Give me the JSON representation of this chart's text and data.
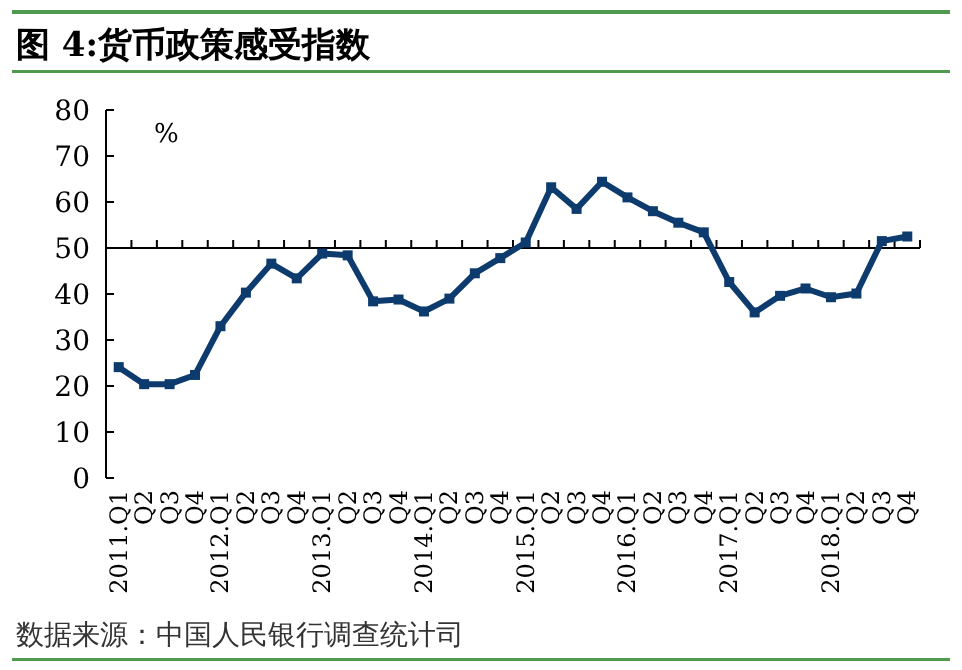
{
  "chart_data": {
    "type": "line",
    "title": "图 4:货币政策感受指数",
    "ylabel": "%",
    "annotations": [
      "数据来源：中国人民银行调查统计司"
    ],
    "categories": [
      "2011.Q1",
      "Q2",
      "Q3",
      "Q4",
      "2012.Q1",
      "Q2",
      "Q3",
      "Q4",
      "2013.Q1",
      "Q2",
      "Q3",
      "Q4",
      "2014.Q1",
      "Q2",
      "Q3",
      "Q4",
      "2015.Q1",
      "Q2",
      "Q3",
      "Q4",
      "2016.Q1",
      "Q2",
      "Q3",
      "Q4",
      "2017.Q1",
      "Q2",
      "Q3",
      "Q4",
      "2018.Q1",
      "Q2",
      "Q3",
      "Q4"
    ],
    "series": [
      {
        "color": "#0d3b6e",
        "values": [
          24.1,
          20.4,
          20.4,
          22.4,
          33,
          40.3,
          46.6,
          43.4,
          48.8,
          48.4,
          38.4,
          38.8,
          36.2,
          39,
          44.5,
          47.8,
          51.2,
          63.2,
          58.5,
          64.4,
          61,
          58,
          55.5,
          53.4,
          42.6,
          36,
          39.6,
          41.2,
          39.3,
          40.1,
          51.5,
          52.5
        ]
      }
    ],
    "ylim": [
      0,
      80
    ],
    "yticks": [
      0,
      10,
      20,
      30,
      40,
      50,
      60,
      70,
      80
    ],
    "ref_lines": [
      {
        "axis": "y",
        "value": 50,
        "color": "#000000"
      }
    ],
    "marker": "square",
    "line_style": "solid"
  }
}
